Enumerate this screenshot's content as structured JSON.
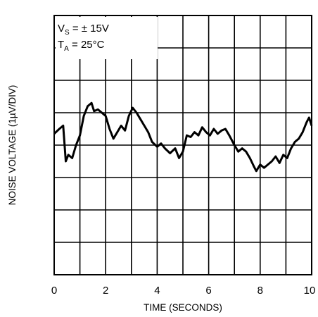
{
  "chart_data": {
    "type": "line",
    "title": "",
    "xlabel": "TIME (SECONDS)",
    "ylabel": "NOISE VOLTAGE (1µV/DIV)",
    "xlim": [
      0,
      10
    ],
    "ylim": [
      -4,
      4
    ],
    "grid": true,
    "x_tick_labels": [
      "0",
      "2",
      "4",
      "6",
      "8",
      "10"
    ],
    "annotations": [
      {
        "main": "V",
        "sub": "S",
        "rest": " = ± 15V"
      },
      {
        "main": "T",
        "sub": "A",
        "rest": " = 25°C"
      }
    ],
    "series": [
      {
        "x": [
          0.0,
          0.2,
          0.35,
          0.45,
          0.55,
          0.7,
          0.85,
          1.0,
          1.15,
          1.3,
          1.45,
          1.55,
          1.7,
          1.85,
          2.0,
          2.15,
          2.3,
          2.45,
          2.6,
          2.75,
          2.9,
          3.05,
          3.2,
          3.35,
          3.5,
          3.65,
          3.8,
          4.0,
          4.15,
          4.3,
          4.5,
          4.7,
          4.85,
          5.0,
          5.15,
          5.3,
          5.45,
          5.6,
          5.75,
          5.9,
          6.05,
          6.2,
          6.35,
          6.5,
          6.65,
          6.8,
          7.0,
          7.15,
          7.3,
          7.45,
          7.6,
          7.75,
          7.85,
          8.0,
          8.15,
          8.3,
          8.45,
          8.6,
          8.75,
          8.9,
          9.05,
          9.2,
          9.35,
          9.5,
          9.65,
          9.8,
          9.9,
          10.0
        ],
        "y": [
          0.35,
          0.5,
          0.6,
          -0.5,
          -0.3,
          -0.4,
          0.0,
          0.3,
          0.9,
          1.2,
          1.3,
          1.05,
          1.1,
          1.0,
          0.9,
          0.5,
          0.2,
          0.4,
          0.6,
          0.45,
          0.9,
          1.15,
          1.0,
          0.8,
          0.6,
          0.4,
          0.1,
          -0.05,
          0.05,
          -0.1,
          -0.25,
          -0.1,
          -0.4,
          -0.2,
          0.3,
          0.25,
          0.4,
          0.3,
          0.55,
          0.4,
          0.3,
          0.5,
          0.35,
          0.45,
          0.5,
          0.3,
          0.0,
          -0.2,
          -0.1,
          -0.2,
          -0.4,
          -0.65,
          -0.8,
          -0.6,
          -0.7,
          -0.6,
          -0.5,
          -0.35,
          -0.55,
          -0.3,
          -0.4,
          -0.1,
          0.1,
          0.2,
          0.4,
          0.7,
          0.85,
          0.6
        ]
      }
    ]
  }
}
